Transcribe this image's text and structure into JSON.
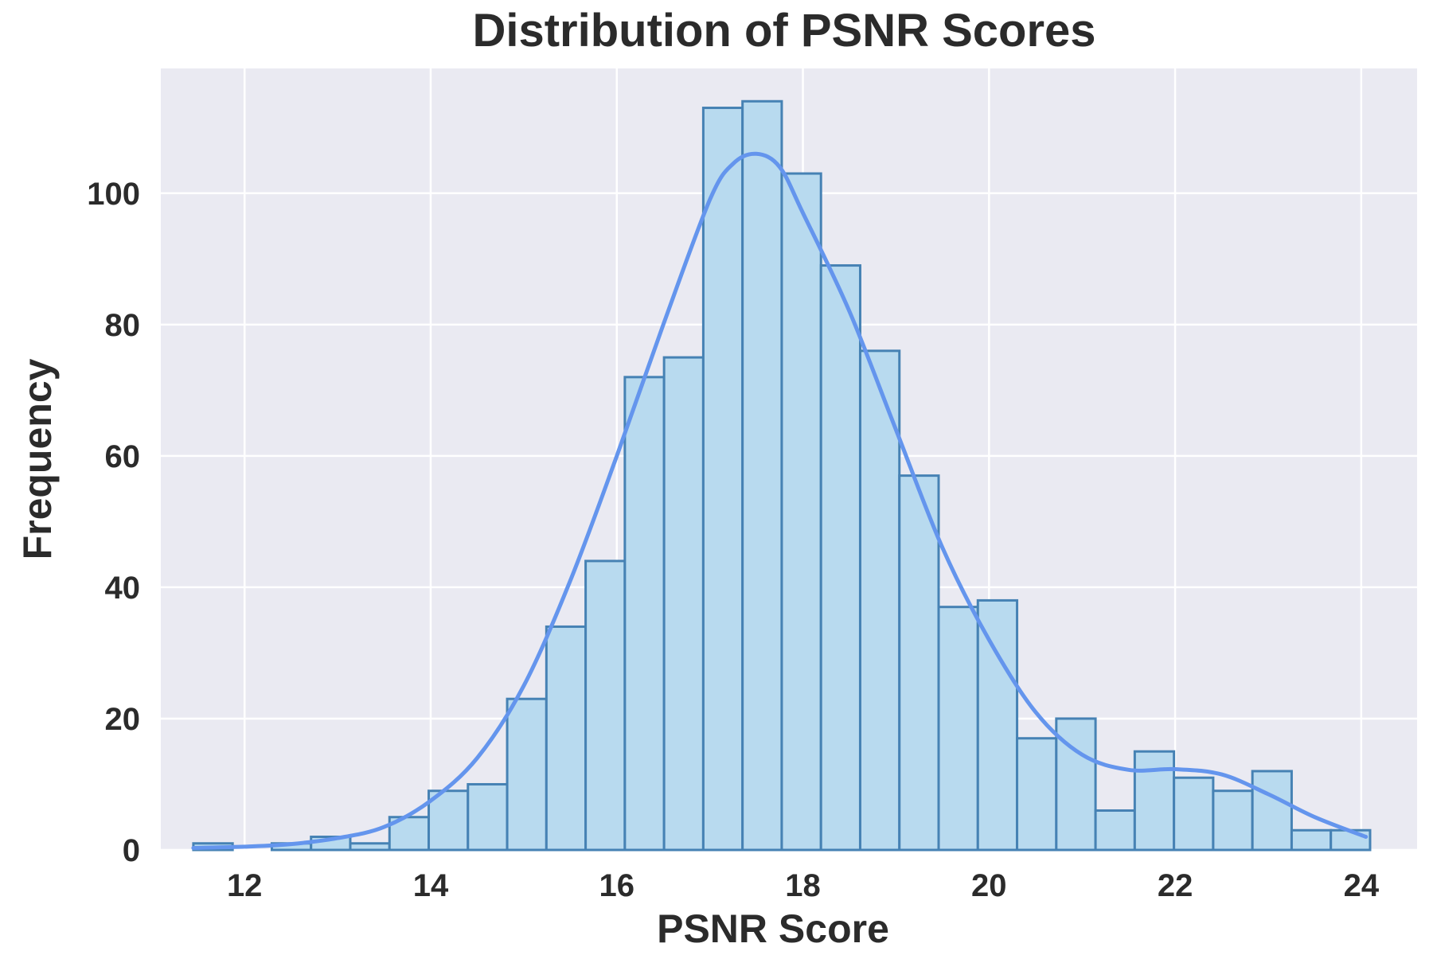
{
  "chart_data": {
    "type": "histogram",
    "title": "Distribution of PSNR Scores",
    "xlabel": "PSNR Score",
    "ylabel": "Frequency",
    "xlim": [
      11.1,
      24.6
    ],
    "ylim": [
      0,
      119
    ],
    "xticks": [
      12,
      14,
      16,
      18,
      20,
      22,
      24
    ],
    "yticks": [
      0,
      20,
      40,
      60,
      80,
      100
    ],
    "bin_start": 11.45,
    "bin_width": 0.4215,
    "counts": [
      1,
      0,
      1,
      2,
      1,
      5,
      9,
      10,
      23,
      34,
      44,
      72,
      75,
      113,
      114,
      103,
      89,
      76,
      57,
      37,
      38,
      17,
      20,
      6,
      15,
      11,
      9,
      12,
      3,
      3
    ],
    "kde": {
      "x": [
        11.45,
        12.0,
        12.5,
        13.0,
        13.5,
        14.0,
        14.5,
        15.0,
        15.5,
        16.0,
        16.5,
        17.0,
        17.25,
        17.5,
        17.75,
        18.0,
        18.5,
        19.0,
        19.5,
        20.0,
        20.5,
        21.0,
        21.5,
        22.0,
        22.5,
        23.0,
        23.5,
        24.05
      ],
      "y": [
        0.3,
        0.5,
        0.9,
        1.8,
        3.5,
        7.5,
        14.0,
        25.0,
        41.0,
        60.0,
        80.0,
        99.0,
        104.5,
        106.0,
        104.0,
        97.0,
        82.0,
        64.0,
        46.0,
        32.0,
        21.0,
        14.5,
        12.2,
        12.3,
        11.5,
        8.5,
        5.0,
        2.0
      ]
    },
    "grid": true,
    "colors": {
      "background": "#eaeaf2",
      "bar_fill": "#b8daef",
      "bar_edge": "#4682b4",
      "kde_line": "#6495ed",
      "grid": "#ffffff",
      "text": "#2b2b2b"
    }
  }
}
